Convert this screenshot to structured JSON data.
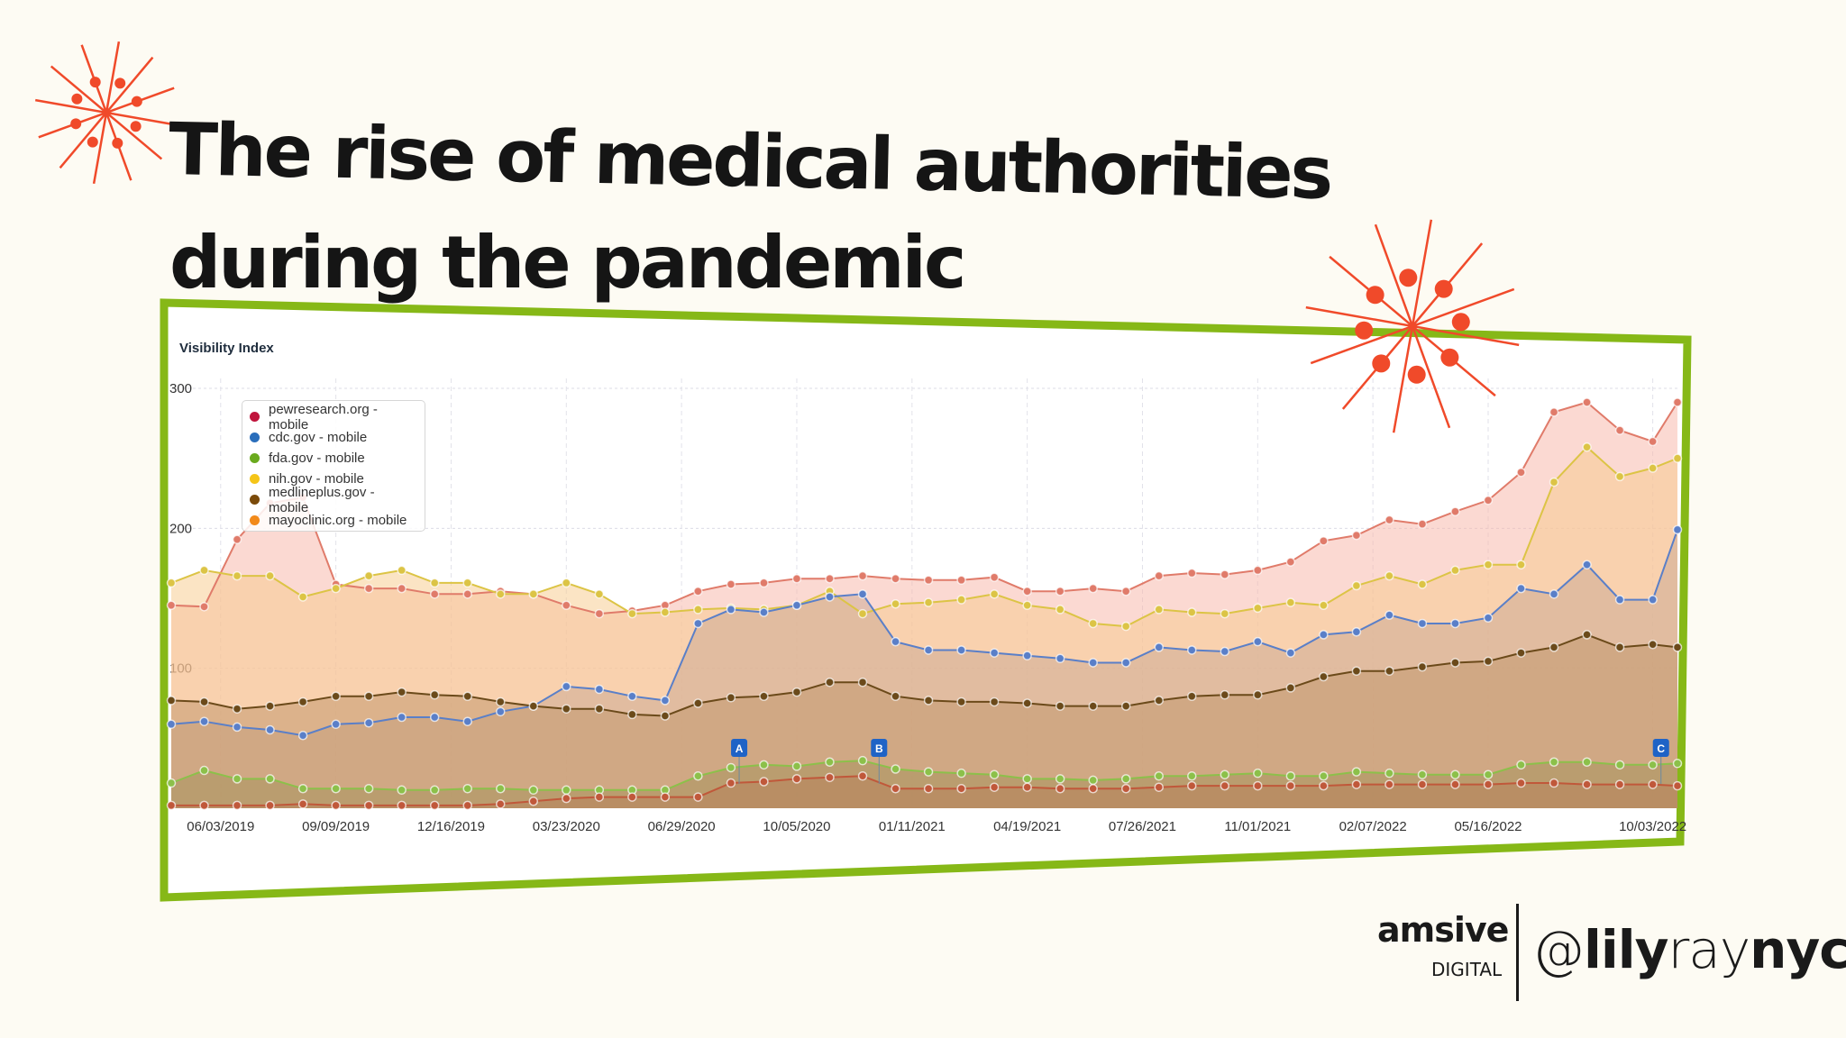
{
  "title": {
    "line1": "The rise of medical authorities",
    "line2": "during the pandemic"
  },
  "branding": {
    "company": "amsive",
    "company_sub": "DIGITAL",
    "handle_prefix": "@",
    "handle_part1": "lily",
    "handle_part2": "ray",
    "handle_part3": "nyc"
  },
  "colors": {
    "background": "#fdfbf3",
    "frame": "#86b817",
    "star": "#f04a2a"
  },
  "chart_data": {
    "type": "area",
    "title": "Visibility Index",
    "xlabel": "",
    "ylabel": "",
    "ylim": [
      0,
      300
    ],
    "yticks": [
      100,
      200,
      300
    ],
    "xticks": [
      "06/03/2019",
      "09/09/2019",
      "12/16/2019",
      "03/23/2020",
      "06/29/2020",
      "10/05/2020",
      "01/11/2021",
      "04/19/2021",
      "07/26/2021",
      "11/01/2021",
      "02/07/2022",
      "05/16/2022",
      "10/03/2022"
    ],
    "grid": true,
    "legend_placement": "top-left",
    "x": [
      "2019-04-22",
      "2019-05-20",
      "2019-06-17",
      "2019-07-15",
      "2019-08-12",
      "2019-09-09",
      "2019-10-07",
      "2019-11-04",
      "2019-12-02",
      "2019-12-30",
      "2020-01-27",
      "2020-02-24",
      "2020-03-23",
      "2020-04-20",
      "2020-05-18",
      "2020-06-15",
      "2020-07-13",
      "2020-08-10",
      "2020-09-07",
      "2020-10-05",
      "2020-11-02",
      "2020-11-30",
      "2020-12-28",
      "2021-01-25",
      "2021-02-22",
      "2021-03-22",
      "2021-04-19",
      "2021-05-17",
      "2021-06-14",
      "2021-07-12",
      "2021-08-09",
      "2021-09-06",
      "2021-10-04",
      "2021-11-01",
      "2021-11-29",
      "2021-12-27",
      "2022-01-24",
      "2022-02-21",
      "2022-03-21",
      "2022-04-18",
      "2022-05-16",
      "2022-06-13",
      "2022-07-11",
      "2022-08-08",
      "2022-09-05",
      "2022-10-03",
      "2022-10-24"
    ],
    "series": [
      {
        "name": "mayoclinic.org - mobile",
        "legend_color": "#f28a1a",
        "line_color": "#e07b6a",
        "fill": "#f7b3a5",
        "values": [
          145,
          144,
          192,
          218,
          222,
          160,
          157,
          157,
          153,
          153,
          155,
          153,
          145,
          139,
          141,
          145,
          155,
          160,
          161,
          164,
          164,
          166,
          164,
          163,
          163,
          165,
          155,
          155,
          157,
          155,
          166,
          168,
          167,
          170,
          176,
          191,
          195,
          206,
          203,
          212,
          220,
          240,
          283,
          290,
          270,
          262,
          290
        ]
      },
      {
        "name": "nih.gov - mobile",
        "legend_color": "#f5c518",
        "line_color": "#dcc445",
        "fill": "#f8c98a",
        "values": [
          161,
          170,
          166,
          166,
          151,
          157,
          166,
          170,
          161,
          161,
          153,
          153,
          161,
          153,
          139,
          140,
          142,
          143,
          142,
          145,
          155,
          139,
          146,
          147,
          149,
          153,
          145,
          142,
          132,
          130,
          142,
          140,
          139,
          143,
          147,
          145,
          159,
          166,
          160,
          170,
          174,
          174,
          233,
          258,
          237,
          243,
          250
        ]
      },
      {
        "name": "cdc.gov - mobile",
        "legend_color": "#2a6ebb",
        "line_color": "#5a7fc8",
        "fill": "#c9a892",
        "values": [
          60,
          62,
          58,
          56,
          52,
          60,
          61,
          65,
          65,
          62,
          69,
          73,
          87,
          85,
          80,
          77,
          132,
          142,
          140,
          145,
          151,
          153,
          119,
          113,
          113,
          111,
          109,
          107,
          104,
          104,
          115,
          113,
          112,
          119,
          111,
          124,
          126,
          138,
          132,
          132,
          136,
          157,
          153,
          174,
          149,
          149,
          199
        ]
      },
      {
        "name": "medlineplus.gov - mobile",
        "legend_color": "#7a4a0a",
        "line_color": "#6b4a1a",
        "fill": "#bf9468",
        "values": [
          77,
          76,
          71,
          73,
          76,
          80,
          80,
          83,
          81,
          80,
          76,
          73,
          71,
          71,
          67,
          66,
          75,
          79,
          80,
          83,
          90,
          90,
          80,
          77,
          76,
          76,
          75,
          73,
          73,
          73,
          77,
          80,
          81,
          81,
          86,
          94,
          98,
          98,
          101,
          104,
          105,
          111,
          115,
          124,
          115,
          117,
          115
        ]
      },
      {
        "name": "fda.gov - mobile",
        "legend_color": "#6aaa1e",
        "line_color": "#8cc04a",
        "fill": "#a3925a",
        "values": [
          18,
          27,
          21,
          21,
          14,
          14,
          14,
          13,
          13,
          14,
          14,
          13,
          13,
          13,
          13,
          13,
          23,
          29,
          31,
          30,
          33,
          34,
          28,
          26,
          25,
          24,
          21,
          21,
          20,
          21,
          23,
          23,
          24,
          25,
          23,
          23,
          26,
          25,
          24,
          24,
          24,
          31,
          33,
          33,
          31,
          31,
          32
        ]
      },
      {
        "name": "pewresearch.org - mobile",
        "legend_color": "#c0143c",
        "line_color": "#c0583a",
        "fill": "#b7805a",
        "values": [
          2,
          2,
          2,
          2,
          3,
          2,
          2,
          2,
          2,
          2,
          3,
          5,
          7,
          8,
          8,
          8,
          8,
          18,
          19,
          21,
          22,
          23,
          14,
          14,
          14,
          15,
          15,
          14,
          14,
          14,
          15,
          16,
          16,
          16,
          16,
          16,
          17,
          17,
          17,
          17,
          17,
          18,
          18,
          17,
          17,
          17,
          16
        ]
      }
    ],
    "legend_order": [
      "pewresearch.org - mobile",
      "cdc.gov - mobile",
      "fda.gov - mobile",
      "nih.gov - mobile",
      "medlineplus.gov - mobile",
      "mayoclinic.org - mobile"
    ],
    "annotations": [
      {
        "label": "A",
        "date": "2020-08-17"
      },
      {
        "label": "B",
        "date": "2020-12-14"
      },
      {
        "label": "C",
        "date": "2022-10-10"
      }
    ]
  }
}
